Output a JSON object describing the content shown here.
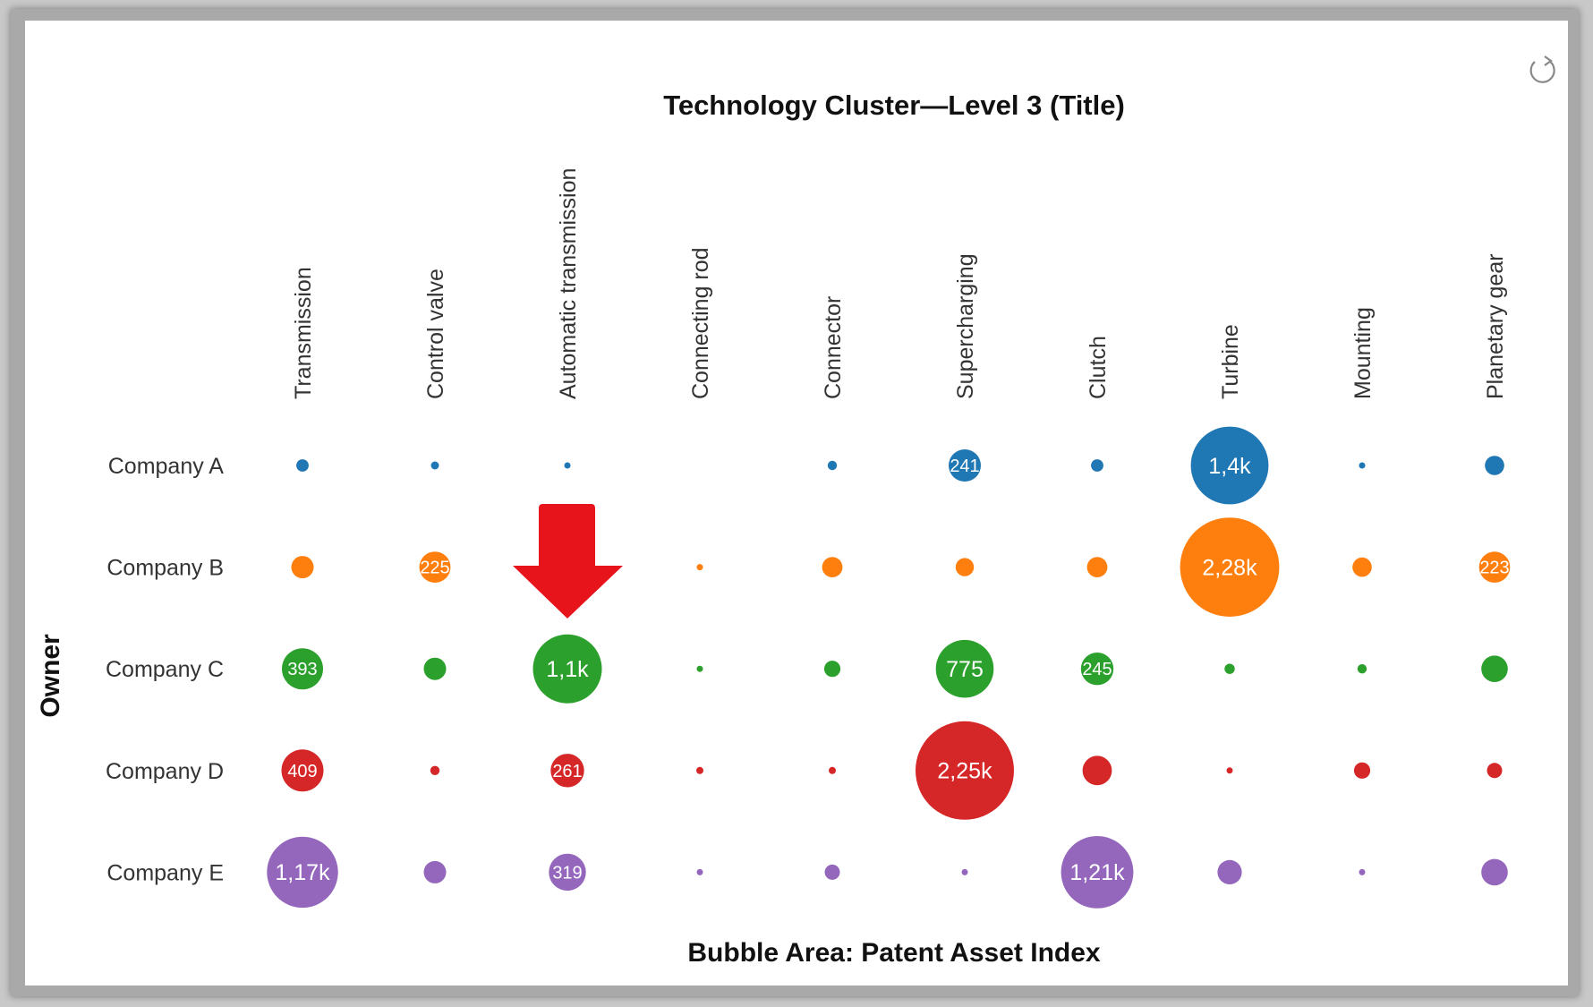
{
  "chart_data": {
    "type": "bubble-matrix",
    "title": "Technology Cluster—Level 3 (Title)",
    "xlabel": "",
    "ylabel": "Owner",
    "size_label": "Bubble Area:  Patent Asset Index",
    "categories": [
      "Transmission",
      "Control valve",
      "Automatic transmission",
      "Connecting rod",
      "Connector",
      "Supercharging",
      "Clutch",
      "Turbine",
      "Mounting",
      "Planetary gear"
    ],
    "series": [
      {
        "name": "Company A",
        "color": "#1f77b4",
        "values": [
          35,
          15,
          9,
          0,
          20,
          241,
          35,
          1400,
          9,
          87
        ],
        "labels": [
          null,
          null,
          null,
          null,
          null,
          "241",
          null,
          "1,4k",
          null,
          null
        ]
      },
      {
        "name": "Company B",
        "color": "#ff7f0e",
        "values": [
          116,
          225,
          0,
          9,
          96,
          78,
          96,
          2280,
          87,
          223
        ],
        "labels": [
          null,
          "225",
          null,
          null,
          null,
          null,
          null,
          "2,28k",
          null,
          "223"
        ]
      },
      {
        "name": "Company C",
        "color": "#2ca02c",
        "values": [
          393,
          116,
          1100,
          9,
          62,
          775,
          245,
          24,
          20,
          162
        ],
        "labels": [
          "393",
          null,
          "1,1k",
          null,
          null,
          "775",
          "245",
          null,
          null,
          null
        ]
      },
      {
        "name": "Company D",
        "color": "#d62728",
        "values": [
          409,
          20,
          261,
          12,
          12,
          2250,
          200,
          9,
          62,
          54
        ],
        "labels": [
          "409",
          null,
          "261",
          null,
          null,
          "2,25k",
          null,
          null,
          null,
          null
        ]
      },
      {
        "name": "Company E",
        "color": "#9467bd",
        "values": [
          1170,
          116,
          319,
          9,
          54,
          9,
          1210,
          138,
          9,
          162
        ],
        "labels": [
          "1,17k",
          null,
          "319",
          null,
          null,
          null,
          "1,21k",
          null,
          null,
          null
        ]
      }
    ],
    "grid": false,
    "legend": "none"
  },
  "annotation": {
    "arrow_color": "#e8141c",
    "points_to": "Automatic transmission"
  },
  "toolbar": {
    "reset_icon": "refresh-icon"
  }
}
